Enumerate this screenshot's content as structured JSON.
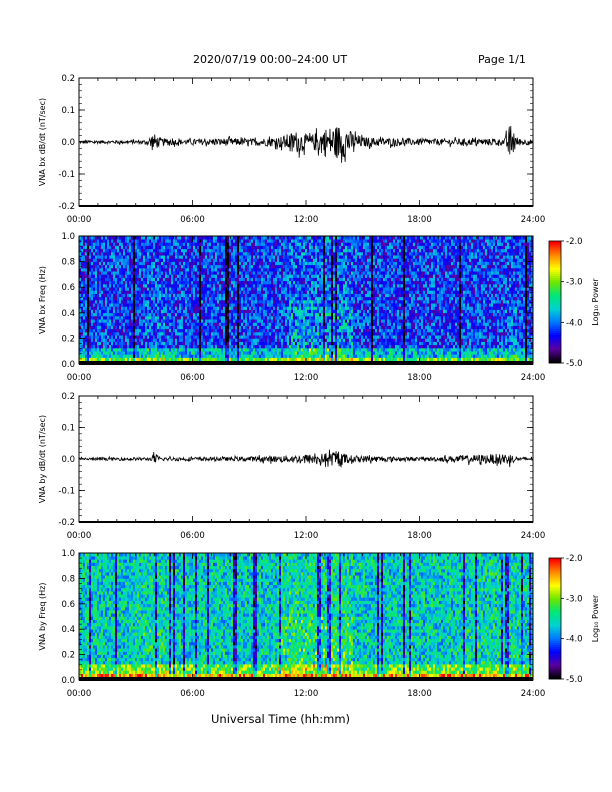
{
  "header": {
    "title": "2020/07/19  00:00–24:00 UT",
    "page": "Page 1/1"
  },
  "footer": {
    "xlabel": "Universal Time (hh:mm)"
  },
  "colors": {
    "trace": "#000000",
    "colormap": [
      "#000000",
      "#5a00a0",
      "#0000ff",
      "#0078ff",
      "#00d2d2",
      "#00e678",
      "#6ee600",
      "#ffff00",
      "#ff8c00",
      "#ff0000"
    ]
  },
  "chart_data": [
    {
      "type": "line",
      "ylabel": "VNA bx dB/dt (nT/sec)",
      "x_ticks": [
        "00:00",
        "06:00",
        "12:00",
        "18:00",
        "24:00"
      ],
      "xlim": [
        0,
        24
      ],
      "ylim": [
        -0.2,
        0.2
      ],
      "y_ticks": [
        "0.2",
        "0.1",
        "0.0",
        "-0.1",
        "-0.2"
      ],
      "baseline": 0.0,
      "envelope": [
        {
          "t": 0.0,
          "amp": 0.005
        },
        {
          "t": 3.6,
          "amp": 0.006
        },
        {
          "t": 3.9,
          "amp": 0.03
        },
        {
          "t": 4.3,
          "amp": 0.012
        },
        {
          "t": 5.5,
          "amp": 0.008
        },
        {
          "t": 8.0,
          "amp": 0.012
        },
        {
          "t": 9.0,
          "amp": 0.01
        },
        {
          "t": 10.5,
          "amp": 0.015
        },
        {
          "t": 11.5,
          "amp": 0.035
        },
        {
          "t": 12.2,
          "amp": 0.02
        },
        {
          "t": 13.0,
          "amp": 0.045
        },
        {
          "t": 13.8,
          "amp": 0.055
        },
        {
          "t": 14.2,
          "amp": 0.04
        },
        {
          "t": 15.0,
          "amp": 0.015
        },
        {
          "t": 18.0,
          "amp": 0.01
        },
        {
          "t": 22.5,
          "amp": 0.01
        },
        {
          "t": 22.8,
          "amp": 0.06
        },
        {
          "t": 23.2,
          "amp": 0.012
        },
        {
          "t": 24.0,
          "amp": 0.008
        }
      ]
    },
    {
      "type": "heatmap",
      "ylabel": "VNA bx Freq (Hz)",
      "x_ticks": [
        "00:00",
        "06:00",
        "12:00",
        "18:00",
        "24:00"
      ],
      "xlim": [
        0,
        24
      ],
      "ylim": [
        0.0,
        1.0
      ],
      "y_ticks": [
        "1.0",
        "0.8",
        "0.6",
        "0.4",
        "0.2",
        "0.0"
      ],
      "colorbar": {
        "label": "Log₁₀ Power",
        "ticks": [
          "-2.0",
          "-3.0",
          "-4.0",
          "-5.0"
        ],
        "range": [
          -5.0,
          -2.0
        ]
      },
      "background_level": -4.2,
      "active_intervals": [
        [
          3.5,
          4.5,
          0.3
        ],
        [
          11.0,
          14.5,
          0.6
        ],
        [
          22.5,
          23.2,
          0.3
        ]
      ]
    },
    {
      "type": "line",
      "ylabel": "VNA by dB/dt (nT/sec)",
      "x_ticks": [
        "00:00",
        "06:00",
        "12:00",
        "18:00",
        "24:00"
      ],
      "xlim": [
        0,
        24
      ],
      "ylim": [
        -0.2,
        0.2
      ],
      "y_ticks": [
        "0.2",
        "0.1",
        "0.0",
        "-0.1",
        "-0.2"
      ],
      "baseline": 0.0,
      "envelope": [
        {
          "t": 0.0,
          "amp": 0.004
        },
        {
          "t": 3.8,
          "amp": 0.005
        },
        {
          "t": 4.0,
          "amp": 0.018
        },
        {
          "t": 4.3,
          "amp": 0.006
        },
        {
          "t": 8.0,
          "amp": 0.006
        },
        {
          "t": 11.5,
          "amp": 0.012
        },
        {
          "t": 12.0,
          "amp": 0.015
        },
        {
          "t": 13.0,
          "amp": 0.018
        },
        {
          "t": 13.7,
          "amp": 0.025
        },
        {
          "t": 14.3,
          "amp": 0.012
        },
        {
          "t": 18.0,
          "amp": 0.005
        },
        {
          "t": 22.8,
          "amp": 0.018
        },
        {
          "t": 23.1,
          "amp": 0.006
        },
        {
          "t": 24.0,
          "amp": 0.005
        }
      ]
    },
    {
      "type": "heatmap",
      "ylabel": "VNA by Freq (Hz)",
      "x_ticks": [
        "00:00",
        "06:00",
        "12:00",
        "18:00",
        "24:00"
      ],
      "xlim": [
        0,
        24
      ],
      "ylim": [
        0.0,
        1.0
      ],
      "y_ticks": [
        "1.0",
        "0.8",
        "0.6",
        "0.4",
        "0.2",
        "0.0"
      ],
      "colorbar": {
        "label": "Log₁₀ Power",
        "ticks": [
          "-2.0",
          "-3.0",
          "-4.0",
          "-5.0"
        ],
        "range": [
          -5.0,
          -2.0
        ]
      },
      "background_level": -3.6,
      "active_intervals": [
        [
          3.0,
          5.0,
          0.2
        ],
        [
          10.5,
          14.5,
          0.5
        ],
        [
          20.5,
          23.5,
          0.2
        ]
      ]
    }
  ]
}
